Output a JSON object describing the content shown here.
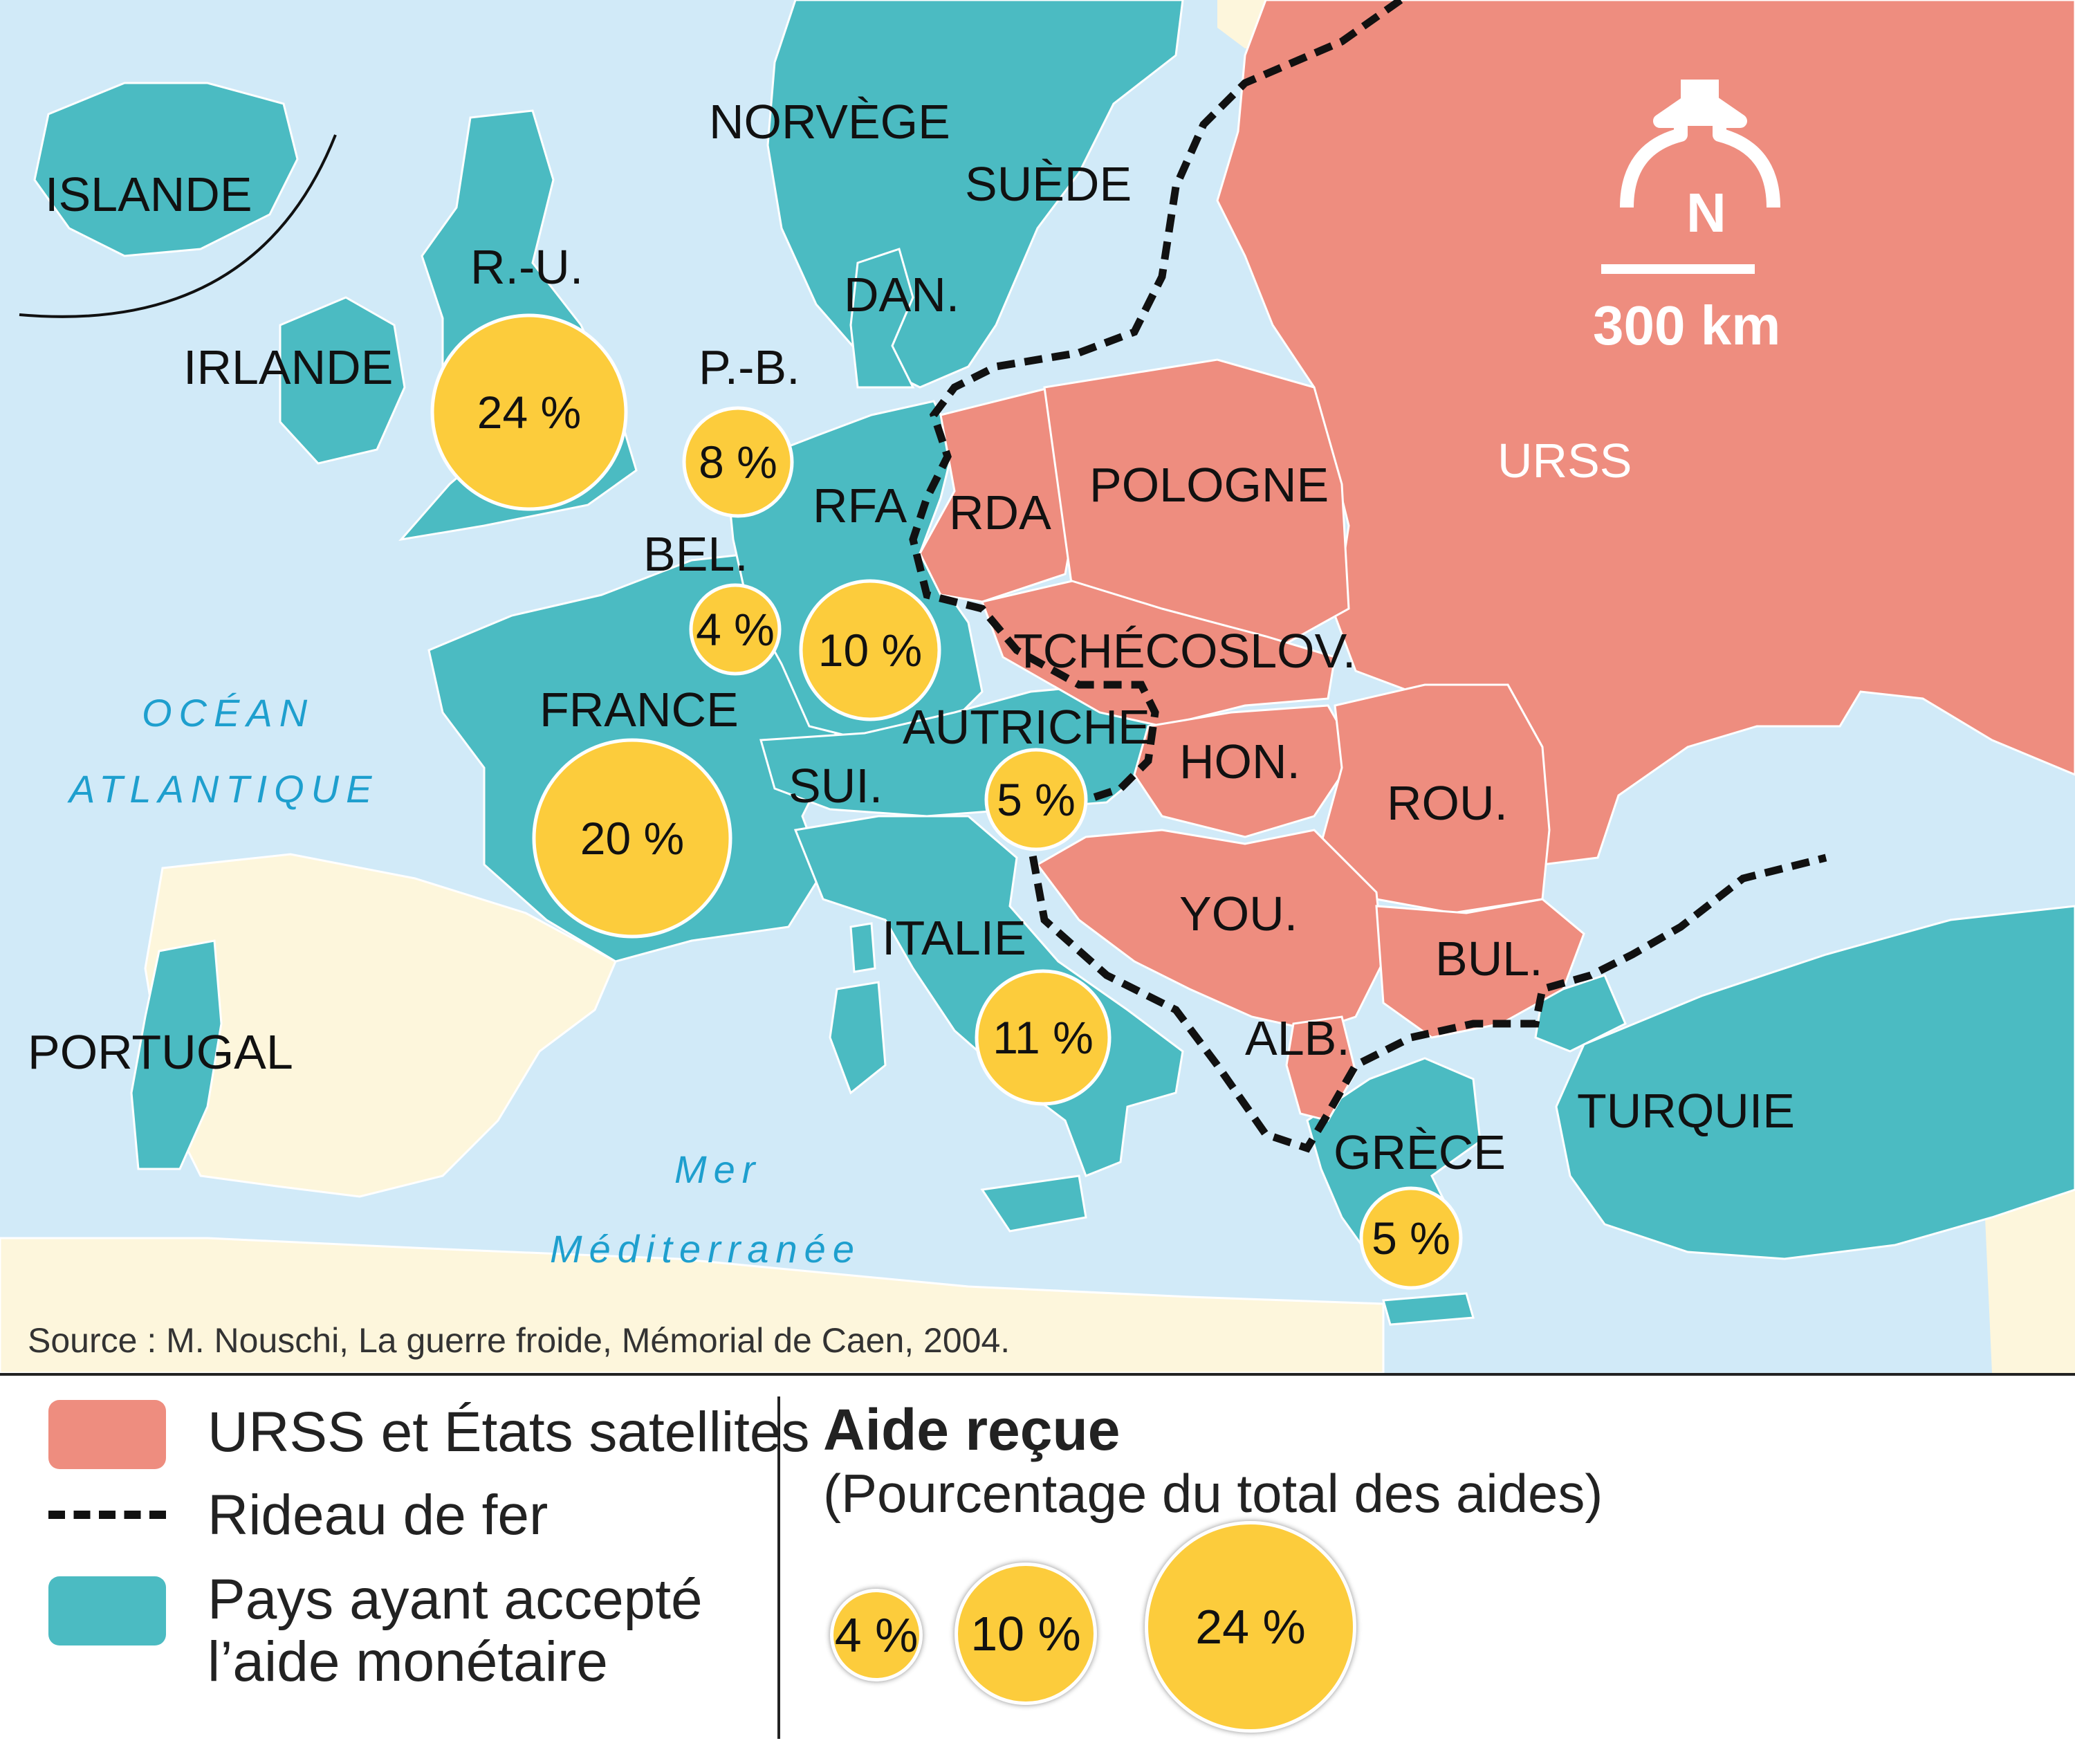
{
  "colors": {
    "sea": "#d1eaf8",
    "ussr": "#ee8d7f",
    "aid": "#4bbbc2",
    "other": "#fdf6dc",
    "bubble": "#fccc3c",
    "sea_text": "#1e9fce"
  },
  "map": {
    "countries": {
      "islande": "ISLANDE",
      "irlande": "IRLANDE",
      "ru": "R.-U.",
      "norvege": "NORVÈGE",
      "suede": "SUÈDE",
      "dan": "DAN.",
      "pb": "P.-B.",
      "bel": "BEL.",
      "rfa": "RFA",
      "rda": "RDA",
      "pologne": "POLOGNE",
      "urss": "URSS",
      "tchecoslov": "TCHÉCOSLOV.",
      "france": "FRANCE",
      "autriche": "AUTRICHE",
      "sui": "SUI.",
      "hon": "HON.",
      "rou": "ROU.",
      "you": "YOU.",
      "italie": "ITALIE",
      "bul": "BUL.",
      "alb": "ALB.",
      "grece": "GRÈCE",
      "turquie": "TURQUIE",
      "portugal": "PORTUGAL"
    },
    "seas": {
      "ocean1": "OCÉAN",
      "ocean2": "ATLANTIQUE",
      "mer1": "Mer",
      "mer2": "Méditerranée"
    },
    "aid": {
      "ru": "24 %",
      "pb": "8 %",
      "bel": "4 %",
      "rfa": "10 %",
      "france": "20 %",
      "autriche": "5 %",
      "italie": "11 %",
      "grece": "5 %"
    },
    "north": "N",
    "scale": "300 km",
    "source": "Source : M. Nouschi, La guerre froide, Mémorial de Caen, 2004."
  },
  "legend": {
    "ussr": "URSS et États satellites",
    "curtain": "Rideau de fer",
    "aid1": "Pays ayant accepté",
    "aid2": "l’aide monétaire",
    "title": "Aide reçue",
    "subtitle": "(Pourcentage du total des aides)",
    "samples": [
      "4 %",
      "10 %",
      "24 %"
    ]
  }
}
